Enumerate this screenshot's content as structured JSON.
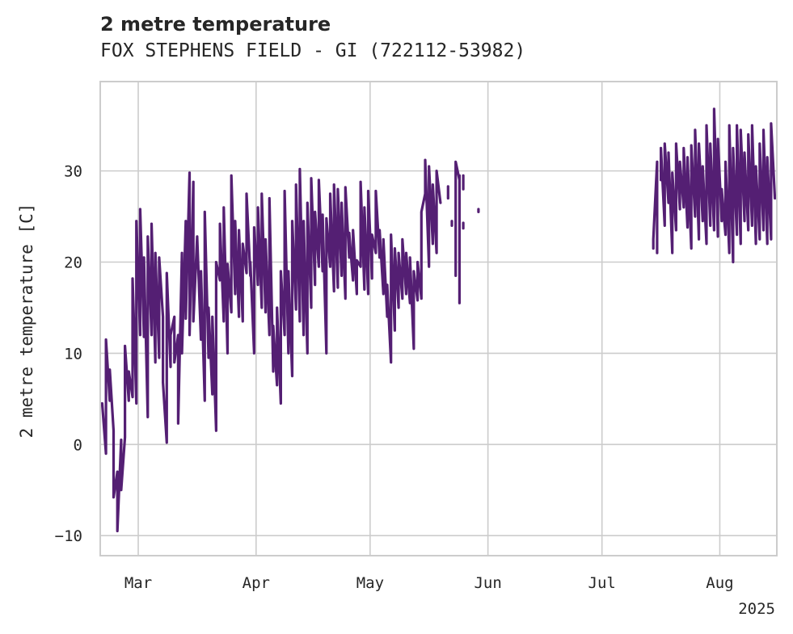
{
  "chart_data": {
    "type": "line",
    "title": "2 metre temperature",
    "subtitle": "FOX STEPHENS FIELD - GI (722112-53982)",
    "xlabel": "",
    "ylabel": "2 metre temperature [C]",
    "x_axis_type": "date",
    "xlim": [
      "2025-02-19",
      "2025-08-16"
    ],
    "ylim": [
      -12.2,
      39.8
    ],
    "x_ticks": [
      {
        "date": "2025-03-01",
        "label": "Mar"
      },
      {
        "date": "2025-04-01",
        "label": "Apr"
      },
      {
        "date": "2025-05-01",
        "label": "May"
      },
      {
        "date": "2025-06-01",
        "label": "Jun"
      },
      {
        "date": "2025-07-01",
        "label": "Jul"
      },
      {
        "date": "2025-08-01",
        "label": "Aug"
      }
    ],
    "x_offset_label": "2025",
    "y_ticks": [
      -10,
      0,
      10,
      20,
      30
    ],
    "y_tick_labels": [
      "−10",
      "0",
      "10",
      "20",
      "30"
    ],
    "grid": true,
    "legend": "none",
    "line_color": "#541f73",
    "series": [
      {
        "points": [
          [
            "2025-02-19",
            4.5
          ],
          [
            "2025-02-20",
            -1.0
          ],
          [
            "2025-02-20",
            11.5
          ],
          [
            "2025-02-21",
            4.8
          ],
          [
            "2025-02-21",
            8.2
          ],
          [
            "2025-02-22",
            1.5
          ],
          [
            "2025-02-22",
            -5.8
          ],
          [
            "2025-02-23",
            -3.0
          ],
          [
            "2025-02-23",
            -9.5
          ],
          [
            "2025-02-24",
            0.5
          ],
          [
            "2025-02-24",
            -5.0
          ],
          [
            "2025-02-25",
            0.8
          ],
          [
            "2025-02-25",
            10.8
          ],
          [
            "2025-02-26",
            4.8
          ],
          [
            "2025-02-26",
            8.0
          ],
          [
            "2025-02-27",
            5.2
          ],
          [
            "2025-02-27",
            18.2
          ],
          [
            "2025-02-28",
            4.5
          ],
          [
            "2025-02-28",
            24.5
          ],
          [
            "2025-03-01",
            12.0
          ],
          [
            "2025-03-01",
            25.8
          ],
          [
            "2025-03-02",
            11.8
          ],
          [
            "2025-03-02",
            20.5
          ],
          [
            "2025-03-03",
            3.0
          ],
          [
            "2025-03-03",
            22.8
          ],
          [
            "2025-03-04",
            12.0
          ],
          [
            "2025-03-04",
            24.2
          ],
          [
            "2025-03-05",
            9.0
          ],
          [
            "2025-03-05",
            21.0
          ],
          [
            "2025-03-06",
            9.5
          ],
          [
            "2025-03-06",
            20.5
          ],
          [
            "2025-03-07",
            14.0
          ],
          [
            "2025-03-07",
            6.8
          ],
          [
            "2025-03-08",
            0.2
          ],
          [
            "2025-03-08",
            18.8
          ],
          [
            "2025-03-09",
            8.5
          ],
          [
            "2025-03-09",
            12.0
          ],
          [
            "2025-03-10",
            14.0
          ],
          [
            "2025-03-10",
            9.0
          ],
          [
            "2025-03-11",
            12.0
          ],
          [
            "2025-03-11",
            2.3
          ],
          [
            "2025-03-12",
            21.0
          ],
          [
            "2025-03-12",
            10.0
          ],
          [
            "2025-03-13",
            24.5
          ],
          [
            "2025-03-13",
            13.8
          ],
          [
            "2025-03-14",
            29.8
          ],
          [
            "2025-03-14",
            12.0
          ],
          [
            "2025-03-15",
            28.8
          ],
          [
            "2025-03-15",
            13.5
          ],
          [
            "2025-03-16",
            22.8
          ],
          [
            "2025-03-17",
            11.5
          ],
          [
            "2025-03-17",
            19.0
          ],
          [
            "2025-03-18",
            4.8
          ],
          [
            "2025-03-18",
            25.5
          ],
          [
            "2025-03-19",
            9.5
          ],
          [
            "2025-03-19",
            15.0
          ],
          [
            "2025-03-20",
            5.5
          ],
          [
            "2025-03-20",
            14.0
          ],
          [
            "2025-03-21",
            1.5
          ],
          [
            "2025-03-21",
            20.0
          ],
          [
            "2025-03-22",
            18.0
          ],
          [
            "2025-03-22",
            24.2
          ],
          [
            "2025-03-23",
            13.5
          ],
          [
            "2025-03-23",
            26.0
          ],
          [
            "2025-03-24",
            10.0
          ],
          [
            "2025-03-24",
            19.8
          ],
          [
            "2025-03-25",
            14.5
          ],
          [
            "2025-03-25",
            29.5
          ],
          [
            "2025-03-26",
            16.5
          ],
          [
            "2025-03-26",
            24.5
          ],
          [
            "2025-03-27",
            14.0
          ],
          [
            "2025-03-27",
            23.5
          ],
          [
            "2025-03-28",
            13.5
          ],
          [
            "2025-03-28",
            22.0
          ],
          [
            "2025-03-29",
            18.8
          ],
          [
            "2025-03-29",
            27.5
          ],
          [
            "2025-03-30",
            18.5
          ],
          [
            "2025-03-30",
            20.0
          ],
          [
            "2025-03-31",
            10.0
          ],
          [
            "2025-03-31",
            23.8
          ],
          [
            "2025-04-01",
            17.5
          ],
          [
            "2025-04-01",
            26.0
          ],
          [
            "2025-04-02",
            15.0
          ],
          [
            "2025-04-02",
            27.5
          ],
          [
            "2025-04-03",
            14.5
          ],
          [
            "2025-04-03",
            22.5
          ],
          [
            "2025-04-04",
            12.0
          ],
          [
            "2025-04-04",
            27.0
          ],
          [
            "2025-04-05",
            8.0
          ],
          [
            "2025-04-05",
            13.0
          ],
          [
            "2025-04-06",
            6.5
          ],
          [
            "2025-04-06",
            15.0
          ],
          [
            "2025-04-07",
            4.5
          ],
          [
            "2025-04-07",
            19.0
          ],
          [
            "2025-04-08",
            12.0
          ],
          [
            "2025-04-08",
            27.8
          ],
          [
            "2025-04-09",
            10.0
          ],
          [
            "2025-04-09",
            19.0
          ],
          [
            "2025-04-10",
            7.5
          ],
          [
            "2025-04-10",
            24.5
          ],
          [
            "2025-04-11",
            14.8
          ],
          [
            "2025-04-11",
            28.5
          ],
          [
            "2025-04-12",
            13.5
          ],
          [
            "2025-04-12",
            30.2
          ],
          [
            "2025-04-13",
            12.0
          ],
          [
            "2025-04-13",
            24.5
          ],
          [
            "2025-04-14",
            10.0
          ],
          [
            "2025-04-14",
            26.5
          ],
          [
            "2025-04-15",
            15.0
          ],
          [
            "2025-04-15",
            29.2
          ],
          [
            "2025-04-16",
            17.5
          ],
          [
            "2025-04-16",
            25.5
          ],
          [
            "2025-04-17",
            19.5
          ],
          [
            "2025-04-17",
            29.0
          ],
          [
            "2025-04-18",
            19.0
          ],
          [
            "2025-04-18",
            25.2
          ],
          [
            "2025-04-19",
            10.0
          ],
          [
            "2025-04-19",
            24.8
          ],
          [
            "2025-04-20",
            19.5
          ],
          [
            "2025-04-20",
            27.5
          ],
          [
            "2025-04-21",
            16.8
          ],
          [
            "2025-04-21",
            28.5
          ],
          [
            "2025-04-22",
            17.2
          ],
          [
            "2025-04-22",
            28.0
          ],
          [
            "2025-04-23",
            18.5
          ],
          [
            "2025-04-23",
            26.5
          ],
          [
            "2025-04-24",
            16.0
          ],
          [
            "2025-04-24",
            28.2
          ],
          [
            "2025-04-25",
            20.5
          ],
          [
            "2025-04-25",
            23.2
          ],
          [
            "2025-04-26",
            18.0
          ],
          [
            "2025-04-26",
            23.5
          ],
          [
            "2025-04-27",
            16.5
          ],
          [
            "2025-04-27",
            20.2
          ],
          [
            "2025-04-28",
            19.5
          ],
          [
            "2025-04-28",
            28.8
          ],
          [
            "2025-04-29",
            17.0
          ],
          [
            "2025-04-29",
            26.0
          ],
          [
            "2025-04-30",
            16.5
          ],
          [
            "2025-04-30",
            27.8
          ],
          [
            "2025-05-01",
            18.2
          ],
          [
            "2025-05-01",
            23.0
          ],
          [
            "2025-05-02",
            21.0
          ],
          [
            "2025-05-02",
            27.8
          ],
          [
            "2025-05-03",
            20.5
          ],
          [
            "2025-05-03",
            23.5
          ],
          [
            "2025-05-04",
            16.5
          ],
          [
            "2025-05-04",
            22.5
          ],
          [
            "2025-05-05",
            14.0
          ],
          [
            "2025-05-05",
            17.5
          ],
          [
            "2025-05-06",
            9.0
          ],
          [
            "2025-05-06",
            23.0
          ],
          [
            "2025-05-07",
            12.5
          ],
          [
            "2025-05-07",
            21.5
          ],
          [
            "2025-05-08",
            15.0
          ],
          [
            "2025-05-08",
            21.0
          ],
          [
            "2025-05-09",
            16.0
          ],
          [
            "2025-05-09",
            22.5
          ],
          [
            "2025-05-10",
            16.5
          ],
          [
            "2025-05-10",
            21.0
          ],
          [
            "2025-05-11",
            15.5
          ],
          [
            "2025-05-11",
            20.5
          ],
          [
            "2025-05-12",
            10.5
          ],
          [
            "2025-05-12",
            19.0
          ],
          [
            "2025-05-13",
            15.8
          ],
          [
            "2025-05-13",
            20.0
          ],
          [
            "2025-05-14",
            16.0
          ],
          [
            "2025-05-14",
            25.5
          ],
          [
            "2025-05-15",
            27.5
          ],
          [
            "2025-05-15",
            31.2
          ],
          [
            "2025-05-16",
            19.5
          ],
          [
            "2025-05-16",
            30.5
          ],
          [
            "2025-05-17",
            22.0
          ],
          [
            "2025-05-17",
            28.5
          ],
          [
            "2025-05-18",
            21.0
          ],
          [
            "2025-05-18",
            30.0
          ],
          [
            "2025-05-19",
            26.5
          ],
          null,
          [
            "2025-05-21",
            28.3
          ],
          [
            "2025-05-21",
            27.0
          ],
          null,
          [
            "2025-05-22",
            24.5
          ],
          [
            "2025-05-22",
            24.0
          ],
          null,
          [
            "2025-05-23",
            18.5
          ],
          [
            "2025-05-23",
            31.0
          ],
          [
            "2025-05-24",
            29.0
          ],
          [
            "2025-05-24",
            15.5
          ],
          [
            "2025-05-24",
            29.5
          ],
          null,
          [
            "2025-05-25",
            29.5
          ],
          [
            "2025-05-25",
            28.0
          ],
          null,
          [
            "2025-05-25",
            24.3
          ],
          [
            "2025-05-25",
            23.7
          ],
          null,
          [
            "2025-05-29",
            25.8
          ],
          [
            "2025-05-29",
            25.5
          ],
          null,
          [
            "2025-07-14",
            21.5
          ],
          [
            "2025-07-14",
            22.5
          ],
          [
            "2025-07-15",
            31.0
          ],
          [
            "2025-07-15",
            21.0
          ],
          [
            "2025-07-15",
            25.5
          ],
          null,
          [
            "2025-07-16",
            29.0
          ],
          [
            "2025-07-16",
            32.5
          ],
          [
            "2025-07-17",
            24.0
          ],
          [
            "2025-07-17",
            33.0
          ],
          [
            "2025-07-18",
            26.5
          ],
          [
            "2025-07-18",
            32.0
          ],
          [
            "2025-07-19",
            21.0
          ],
          [
            "2025-07-19",
            29.8
          ],
          [
            "2025-07-20",
            23.5
          ],
          [
            "2025-07-20",
            33.0
          ],
          [
            "2025-07-21",
            25.8
          ],
          [
            "2025-07-21",
            31.0
          ],
          [
            "2025-07-22",
            26.0
          ],
          [
            "2025-07-22",
            32.5
          ],
          [
            "2025-07-23",
            23.8
          ],
          [
            "2025-07-23",
            31.5
          ],
          [
            "2025-07-24",
            21.5
          ],
          [
            "2025-07-24",
            32.8
          ],
          [
            "2025-07-25",
            25.0
          ],
          [
            "2025-07-25",
            34.5
          ],
          [
            "2025-07-26",
            22.5
          ],
          [
            "2025-07-26",
            33.0
          ],
          [
            "2025-07-27",
            24.5
          ],
          [
            "2025-07-27",
            30.5
          ],
          [
            "2025-07-28",
            22.0
          ],
          [
            "2025-07-28",
            35.0
          ],
          [
            "2025-07-29",
            24.0
          ],
          [
            "2025-07-29",
            33.0
          ],
          [
            "2025-07-30",
            23.5
          ],
          [
            "2025-07-30",
            36.8
          ],
          [
            "2025-07-31",
            22.8
          ],
          [
            "2025-07-31",
            33.5
          ],
          [
            "2025-08-01",
            24.5
          ],
          [
            "2025-08-01",
            28.0
          ],
          [
            "2025-08-02",
            23.0
          ],
          [
            "2025-08-02",
            31.0
          ],
          [
            "2025-08-03",
            21.0
          ],
          [
            "2025-08-03",
            35.0
          ],
          [
            "2025-08-04",
            20.0
          ],
          [
            "2025-08-04",
            32.5
          ],
          [
            "2025-08-05",
            23.0
          ],
          [
            "2025-08-05",
            35.0
          ],
          [
            "2025-08-06",
            22.0
          ],
          [
            "2025-08-06",
            34.5
          ],
          [
            "2025-08-07",
            24.5
          ],
          [
            "2025-08-07",
            32.0
          ],
          [
            "2025-08-08",
            23.5
          ],
          [
            "2025-08-08",
            34.0
          ],
          [
            "2025-08-09",
            24.0
          ],
          [
            "2025-08-09",
            35.0
          ],
          [
            "2025-08-10",
            22.0
          ],
          [
            "2025-08-10",
            30.5
          ],
          [
            "2025-08-11",
            22.5
          ],
          [
            "2025-08-11",
            33.0
          ],
          [
            "2025-08-12",
            23.5
          ],
          [
            "2025-08-12",
            34.5
          ],
          [
            "2025-08-13",
            22.0
          ],
          [
            "2025-08-13",
            31.5
          ],
          [
            "2025-08-14",
            22.5
          ],
          [
            "2025-08-14",
            35.2
          ],
          [
            "2025-08-15",
            27.0
          ]
        ]
      }
    ]
  }
}
